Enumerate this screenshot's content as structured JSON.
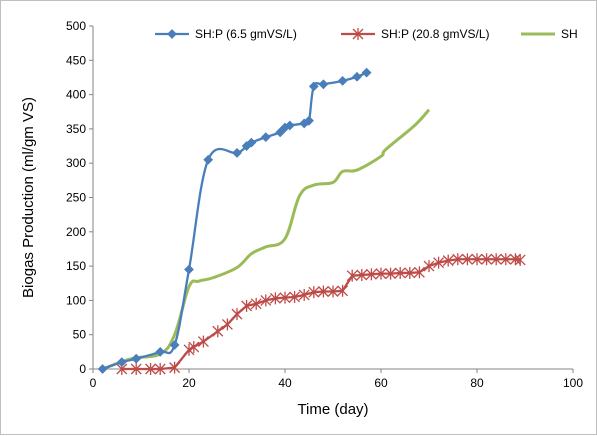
{
  "chart_data": {
    "type": "line",
    "xlabel": "Time (day)",
    "ylabel": "Biogas Production (ml/gm VS)",
    "xlim": [
      0,
      100
    ],
    "ylim": [
      0,
      500
    ],
    "xticks": [
      0,
      20,
      40,
      60,
      80,
      100
    ],
    "yticks": [
      0,
      50,
      100,
      150,
      200,
      250,
      300,
      350,
      400,
      450,
      500
    ],
    "grid": false,
    "legend_position": "top",
    "series": [
      {
        "name": "SH:P (6.5 gmVS/L)",
        "color": "#4a7ebb",
        "marker": "diamond",
        "smooth": true,
        "points": [
          [
            2,
            0
          ],
          [
            6,
            10
          ],
          [
            9,
            15
          ],
          [
            14,
            25
          ],
          [
            17,
            35
          ],
          [
            20,
            145
          ],
          [
            24,
            305
          ],
          [
            30,
            315
          ],
          [
            32,
            325
          ],
          [
            33,
            330
          ],
          [
            36,
            338
          ],
          [
            39,
            345
          ],
          [
            40,
            352
          ],
          [
            41,
            355
          ],
          [
            44,
            358
          ],
          [
            45,
            362
          ],
          [
            46,
            412
          ],
          [
            48,
            415
          ],
          [
            52,
            420
          ],
          [
            55,
            426
          ],
          [
            57,
            432
          ]
        ]
      },
      {
        "name": "SH:P (20.8 gmVS/L)",
        "color": "#be4b48",
        "marker": "asterisk",
        "smooth": false,
        "points": [
          [
            6,
            0
          ],
          [
            9,
            0
          ],
          [
            12,
            0
          ],
          [
            14,
            0
          ],
          [
            17,
            2
          ],
          [
            20,
            28
          ],
          [
            21,
            32
          ],
          [
            23,
            40
          ],
          [
            26,
            55
          ],
          [
            28,
            65
          ],
          [
            30,
            80
          ],
          [
            32,
            92
          ],
          [
            34,
            95
          ],
          [
            36,
            100
          ],
          [
            38,
            103
          ],
          [
            40,
            104
          ],
          [
            42,
            105
          ],
          [
            44,
            108
          ],
          [
            46,
            112
          ],
          [
            48,
            113
          ],
          [
            50,
            113
          ],
          [
            52,
            114
          ],
          [
            54,
            136
          ],
          [
            56,
            137
          ],
          [
            58,
            138
          ],
          [
            60,
            139
          ],
          [
            62,
            139
          ],
          [
            64,
            140
          ],
          [
            66,
            140
          ],
          [
            68,
            141
          ],
          [
            70,
            150
          ],
          [
            72,
            155
          ],
          [
            74,
            158
          ],
          [
            76,
            160
          ],
          [
            78,
            160
          ],
          [
            80,
            160
          ],
          [
            82,
            160
          ],
          [
            84,
            160
          ],
          [
            86,
            160
          ],
          [
            88,
            160
          ],
          [
            89,
            159
          ]
        ]
      },
      {
        "name": "SH",
        "color": "#9bbb59",
        "marker": "none",
        "smooth": true,
        "points": [
          [
            2,
            0
          ],
          [
            8,
            15
          ],
          [
            14,
            22
          ],
          [
            17,
            50
          ],
          [
            20,
            120
          ],
          [
            22,
            128
          ],
          [
            25,
            133
          ],
          [
            30,
            148
          ],
          [
            33,
            168
          ],
          [
            36,
            178
          ],
          [
            40,
            190
          ],
          [
            43,
            252
          ],
          [
            46,
            268
          ],
          [
            50,
            272
          ],
          [
            52,
            288
          ],
          [
            55,
            290
          ],
          [
            60,
            310
          ],
          [
            61,
            320
          ],
          [
            67,
            355
          ],
          [
            70,
            378
          ]
        ]
      }
    ]
  }
}
